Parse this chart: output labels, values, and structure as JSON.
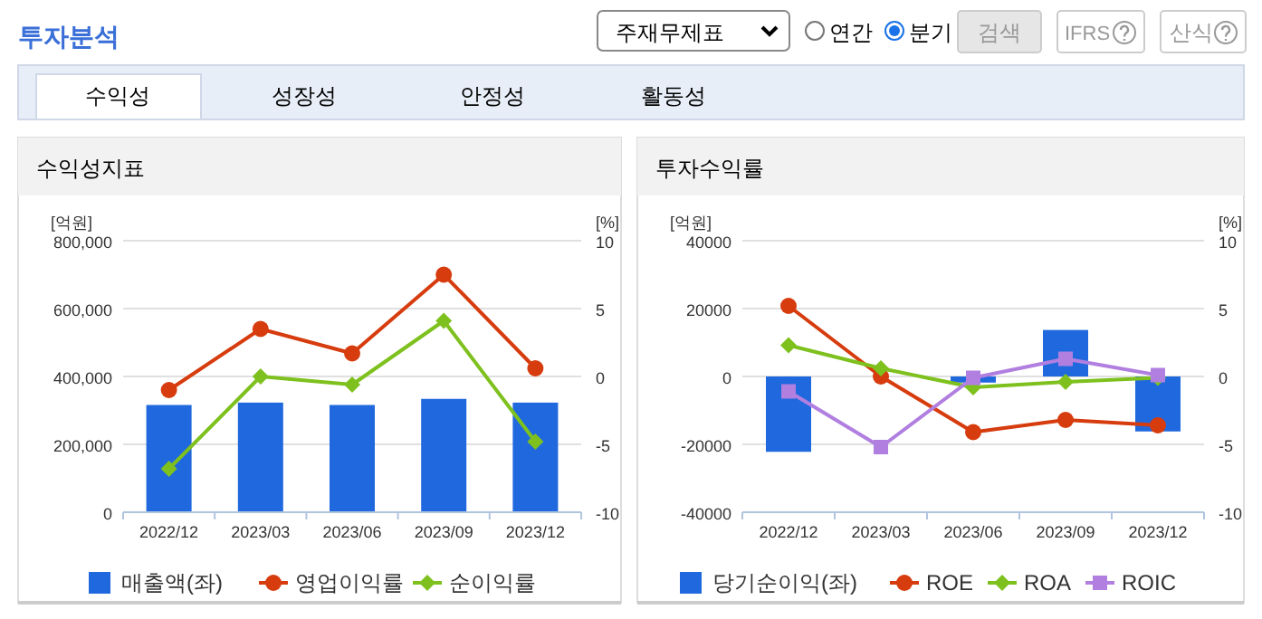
{
  "chart_data": [
    {
      "type": "other",
      "title": "투자분석",
      "annotations": [
        "주재무제표",
        "연간",
        "분기",
        "검색",
        "IFRS",
        "산식",
        "수익성",
        "성장성",
        "안정성",
        "활동성"
      ]
    },
    {
      "type": "bar",
      "title": "수익성지표",
      "ylabel": "[억원]",
      "y2label": "[%]",
      "categories": [
        "2022/12",
        "2023/03",
        "2023/06",
        "2023/09",
        "2023/12"
      ],
      "series": [
        {
          "name": "매출액(좌)",
          "type": "bar",
          "color": "#2068dd",
          "values": [
            316000,
            323000,
            316000,
            334000,
            323000
          ]
        },
        {
          "name": "영업이익률",
          "type": "line",
          "axis": "y2",
          "marker": "circle",
          "color": "#d63c0e",
          "values": [
            -1.0,
            3.5,
            1.7,
            7.5,
            0.6
          ]
        },
        {
          "name": "순이익률",
          "type": "line",
          "axis": "y2",
          "marker": "diamond",
          "color": "#7ec11e",
          "values": [
            -6.8,
            0.0,
            -0.6,
            4.1,
            -4.8
          ]
        }
      ],
      "ylim": [
        0,
        800000
      ],
      "yticks": [
        0,
        {
          "value": 200000,
          "label": "200,000"
        },
        {
          "value": 400000,
          "label": "400,000"
        },
        {
          "value": 600000,
          "label": "600,000"
        },
        {
          "value": 800000,
          "label": "800,000"
        }
      ],
      "y2lim": [
        -10,
        10
      ],
      "y2ticks": [
        -10,
        -5,
        0,
        5,
        10
      ],
      "grid": "y",
      "legend": "bottom"
    },
    {
      "type": "bar",
      "title": "투자수익률",
      "ylabel": "[억원]",
      "y2label": "[%]",
      "categories": [
        "2022/12",
        "2023/03",
        "2023/06",
        "2023/09",
        "2023/12"
      ],
      "series": [
        {
          "name": "당기순이익(좌)",
          "type": "bar",
          "color": "#2068dd",
          "values": [
            -22200,
            0,
            -1800,
            13700,
            -16200
          ]
        },
        {
          "name": "ROE",
          "type": "line",
          "axis": "y2",
          "marker": "circle",
          "color": "#d63c0e",
          "values": [
            5.2,
            0.0,
            -4.1,
            -3.2,
            -3.6
          ]
        },
        {
          "name": "ROA",
          "type": "line",
          "axis": "y2",
          "marker": "diamond",
          "color": "#7ec11e",
          "values": [
            2.3,
            0.6,
            -0.8,
            -0.4,
            -0.1
          ]
        },
        {
          "name": "ROIC",
          "type": "line",
          "axis": "y2",
          "marker": "square",
          "color": "#b07fe0",
          "values": [
            -1.1,
            -5.2,
            -0.1,
            1.3,
            0.1
          ]
        }
      ],
      "ylim": [
        -40000,
        40000
      ],
      "yticks": [
        -40000,
        -20000,
        0,
        20000,
        40000
      ],
      "y2lim": [
        -10,
        10
      ],
      "y2ticks": [
        -10,
        -5,
        0,
        5,
        10
      ],
      "grid": "y",
      "legend": "bottom"
    }
  ]
}
